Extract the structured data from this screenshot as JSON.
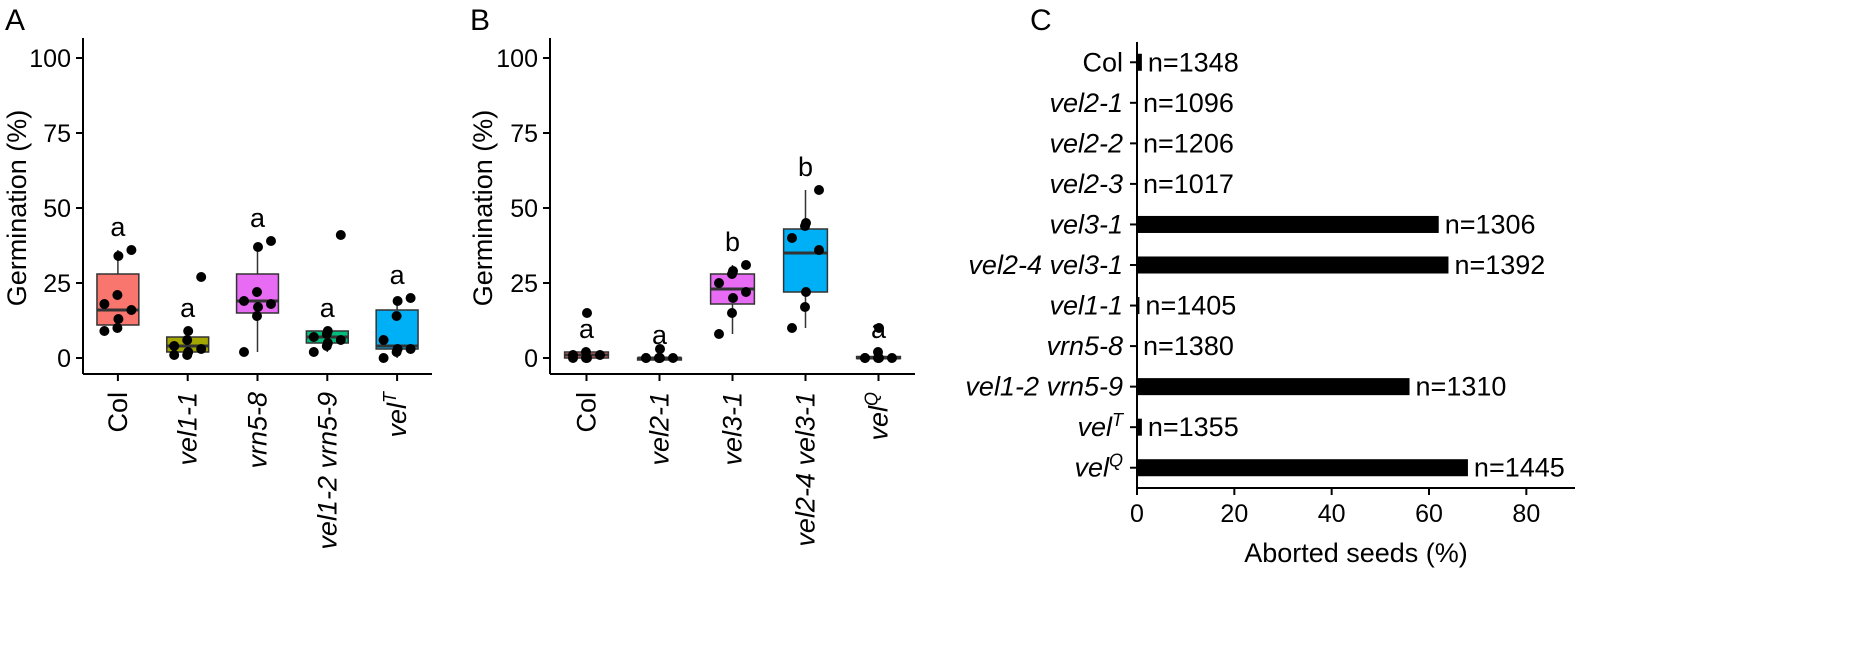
{
  "panels": {
    "a": "A",
    "b": "B",
    "c": "C"
  },
  "chart_data": [
    {
      "type": "box",
      "panel": "A",
      "ylabel": "Germination (%)",
      "ylim": [
        0,
        100
      ],
      "yticks": [
        0,
        25,
        50,
        75,
        100
      ],
      "groups": [
        {
          "label": "Col",
          "italic": false,
          "sup": "",
          "color": "#F8766D",
          "q1": 11,
          "median": 16,
          "q3": 28,
          "whisker_low": 9,
          "whisker_high": 36,
          "sig": "a",
          "points": [
            9,
            10,
            13,
            16,
            18,
            21,
            34,
            36
          ]
        },
        {
          "label": "vel1-1",
          "italic": true,
          "sup": "",
          "color": "#A3A500",
          "q1": 2,
          "median": 4,
          "q3": 7,
          "whisker_low": 1,
          "whisker_high": 9,
          "sig": "a",
          "points": [
            1,
            1,
            2,
            3,
            4,
            6,
            9,
            27
          ]
        },
        {
          "label": "vrn5-8",
          "italic": true,
          "sup": "",
          "color": "#E76BF3",
          "q1": 15,
          "median": 19,
          "q3": 28,
          "whisker_low": 2,
          "whisker_high": 38,
          "sig": "a",
          "points": [
            2,
            14,
            17,
            18,
            19,
            22,
            37,
            39
          ]
        },
        {
          "label": "vel1-2 vrn5-9",
          "italic": true,
          "sup": "",
          "color": "#00BF7D",
          "q1": 5,
          "median": 7,
          "q3": 9,
          "whisker_low": 2,
          "whisker_high": 9,
          "sig": "a",
          "points": [
            2,
            4,
            5,
            6,
            7,
            8,
            9,
            41
          ]
        },
        {
          "label": "vel",
          "italic": true,
          "sup": "T",
          "color": "#00B0F6",
          "q1": 3,
          "median": 4,
          "q3": 16,
          "whisker_low": 0,
          "whisker_high": 20,
          "sig": "a",
          "points": [
            0,
            2,
            3,
            3,
            6,
            14,
            19,
            20
          ]
        }
      ]
    },
    {
      "type": "box",
      "panel": "B",
      "ylabel": "Germination (%)",
      "ylim": [
        0,
        100
      ],
      "yticks": [
        0,
        25,
        50,
        75,
        100
      ],
      "groups": [
        {
          "label": "Col",
          "italic": false,
          "sup": "",
          "color": "#F8766D",
          "q1": 0,
          "median": 1,
          "q3": 2,
          "whisker_low": 0,
          "whisker_high": 2,
          "sig": "a",
          "points": [
            0,
            0,
            0,
            1,
            1,
            2,
            15
          ]
        },
        {
          "label": "vel2-1",
          "italic": true,
          "sup": "",
          "color": "#A3A500",
          "q1": 0,
          "median": 0,
          "q3": 0,
          "whisker_low": 0,
          "whisker_high": 0,
          "sig": "a",
          "points": [
            0,
            0,
            0,
            0,
            0,
            0,
            3
          ]
        },
        {
          "label": "vel3-1",
          "italic": true,
          "sup": "",
          "color": "#E76BF3",
          "q1": 18,
          "median": 23,
          "q3": 28,
          "whisker_low": 8,
          "whisker_high": 31,
          "sig": "b",
          "points": [
            8,
            15,
            20,
            22,
            25,
            28,
            29,
            31
          ]
        },
        {
          "label": "vel2-4 vel3-1",
          "italic": true,
          "sup": "",
          "color": "#00B0F6",
          "q1": 22,
          "median": 35,
          "q3": 43,
          "whisker_low": 10,
          "whisker_high": 56,
          "sig": "b",
          "points": [
            10,
            17,
            22,
            36,
            40,
            44,
            45,
            56
          ]
        },
        {
          "label": "vel",
          "italic": true,
          "sup": "Q",
          "color": "#E76BF3",
          "q1": 0,
          "median": 0,
          "q3": 0.5,
          "whisker_low": 0,
          "whisker_high": 0.5,
          "sig": "a",
          "points": [
            0,
            0,
            0,
            0,
            0,
            2,
            10
          ]
        }
      ]
    },
    {
      "type": "bar",
      "orientation": "horizontal",
      "panel": "C",
      "xlabel": "Aborted seeds (%)",
      "xlim": [
        0,
        90
      ],
      "xticks": [
        0,
        20,
        40,
        60,
        80
      ],
      "categories": [
        {
          "label": "Col",
          "italic": false,
          "sup": "",
          "value": 1.0,
          "n": "n=1348"
        },
        {
          "label": "vel2-1",
          "italic": true,
          "sup": "",
          "value": 0,
          "n": "n=1096"
        },
        {
          "label": "vel2-2",
          "italic": true,
          "sup": "",
          "value": 0,
          "n": "n=1206"
        },
        {
          "label": "vel2-3",
          "italic": true,
          "sup": "",
          "value": 0,
          "n": "n=1017"
        },
        {
          "label": "vel3-1",
          "italic": true,
          "sup": "",
          "value": 62,
          "n": "n=1306"
        },
        {
          "label": "vel2-4 vel3-1",
          "italic": true,
          "sup": "",
          "value": 64,
          "n": "n=1392"
        },
        {
          "label": "vel1-1",
          "italic": true,
          "sup": "",
          "value": 0.5,
          "n": "n=1405"
        },
        {
          "label": "vrn5-8",
          "italic": true,
          "sup": "",
          "value": 0,
          "n": "n=1380"
        },
        {
          "label": "vel1-2 vrn5-9",
          "italic": true,
          "sup": "",
          "value": 56,
          "n": "n=1310"
        },
        {
          "label": "vel",
          "italic": true,
          "sup": "T",
          "value": 1.0,
          "n": "n=1355"
        },
        {
          "label": "vel",
          "italic": true,
          "sup": "Q",
          "value": 68,
          "n": "n=1445"
        }
      ]
    }
  ]
}
